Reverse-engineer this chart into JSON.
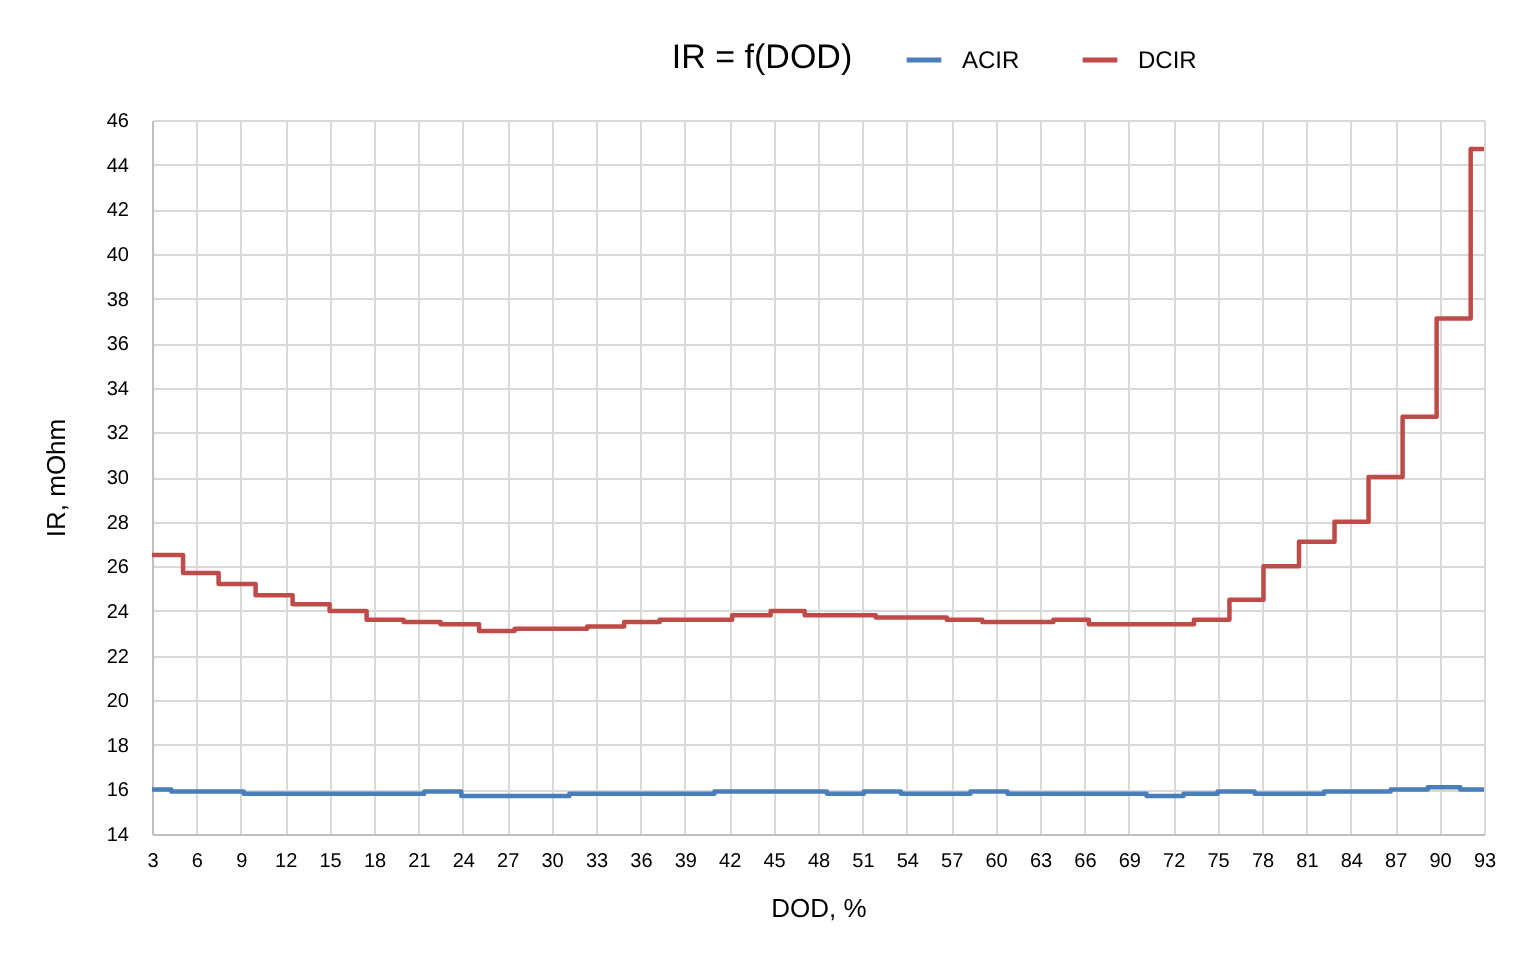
{
  "chart_data": {
    "type": "step",
    "title": "IR = f(DOD)",
    "xlabel": "DOD, %",
    "ylabel": "IR, mOhm",
    "xlim": [
      3,
      93
    ],
    "xticks": [
      3,
      6,
      9,
      12,
      15,
      18,
      21,
      24,
      27,
      30,
      33,
      36,
      39,
      42,
      45,
      48,
      51,
      54,
      57,
      60,
      63,
      66,
      69,
      72,
      75,
      78,
      81,
      84,
      87,
      90,
      93
    ],
    "ylim": [
      14,
      46
    ],
    "yticks": [
      14,
      16,
      18,
      20,
      22,
      24,
      26,
      28,
      30,
      32,
      34,
      36,
      38,
      40,
      42,
      44,
      46
    ],
    "grid": true,
    "legend": "top",
    "line_style": "solid",
    "series": [
      {
        "name": "ACIR",
        "color": "#4a7ebb",
        "x": [
          3,
          4.3,
          6.7,
          9.2,
          11.6,
          14.1,
          16.5,
          19.0,
          21.4,
          23.9,
          26.3,
          28.8,
          31.2,
          33.7,
          36.1,
          38.6,
          41.0,
          43.5,
          45.9,
          48.6,
          51.1,
          53.6,
          56.1,
          58.3,
          60.8,
          63.0,
          65.7,
          68.0,
          70.2,
          72.7,
          75.0,
          77.5,
          79.7,
          82.2,
          84.2,
          86.7,
          89.2,
          91.4,
          93
        ],
        "values": [
          16.0,
          15.9,
          15.9,
          15.8,
          15.8,
          15.8,
          15.8,
          15.8,
          15.9,
          15.7,
          15.7,
          15.7,
          15.8,
          15.8,
          15.8,
          15.8,
          15.9,
          15.9,
          15.9,
          15.8,
          15.9,
          15.8,
          15.8,
          15.9,
          15.8,
          15.8,
          15.8,
          15.8,
          15.7,
          15.8,
          15.9,
          15.8,
          15.8,
          15.9,
          15.9,
          16.0,
          16.1,
          16.0,
          16.0
        ]
      },
      {
        "name": "DCIR",
        "color": "#be4b48",
        "x": [
          3,
          5.1,
          7.5,
          10.0,
          12.5,
          15.0,
          17.5,
          20.0,
          22.5,
          25.1,
          27.5,
          29.9,
          32.4,
          34.9,
          37.3,
          39.8,
          42.2,
          44.8,
          47.1,
          49.5,
          51.9,
          54.4,
          56.7,
          59.1,
          61.5,
          63.9,
          66.3,
          68.7,
          71.0,
          73.4,
          75.8,
          78.1,
          80.5,
          82.9,
          85.2,
          87.5,
          89.8,
          92.1,
          93
        ],
        "values": [
          26.5,
          25.7,
          25.2,
          24.7,
          24.3,
          24.0,
          23.6,
          23.5,
          23.4,
          23.1,
          23.2,
          23.2,
          23.3,
          23.5,
          23.6,
          23.6,
          23.8,
          24.0,
          23.8,
          23.8,
          23.7,
          23.7,
          23.6,
          23.5,
          23.5,
          23.6,
          23.4,
          23.4,
          23.4,
          23.6,
          24.5,
          26.0,
          27.1,
          28.0,
          30.0,
          32.7,
          37.1,
          44.7,
          44.7
        ]
      }
    ]
  }
}
